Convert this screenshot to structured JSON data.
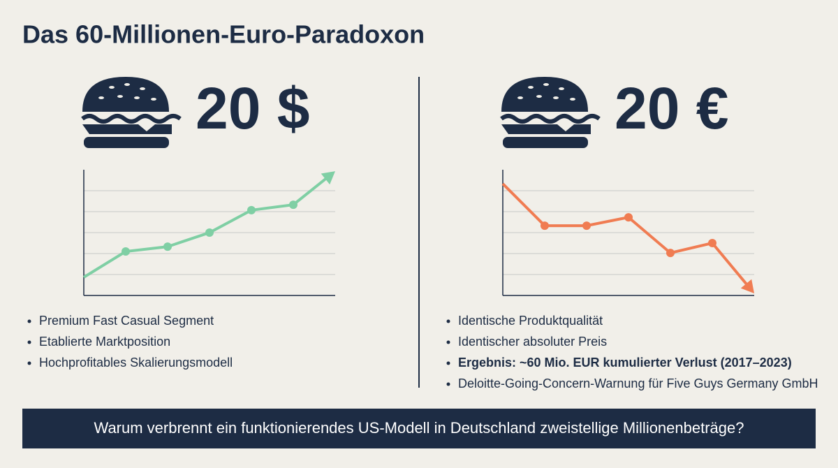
{
  "title": "Das 60-Millionen-Euro-Paradoxon",
  "panels": [
    {
      "price": "20 $",
      "bullets": [
        "Premium Fast Casual Segment",
        "Etablierte Marktposition",
        "Hochprofitables Skalierungsmodell"
      ]
    },
    {
      "price": "20 €",
      "bullets": [
        "Identische Produktqualität",
        "Identischer absoluter Preis",
        "Ergebnis: ~60 Mio. EUR kumulierter Verlust (2017–2023)",
        "Deloitte-Going-Concern-Warnung für Five Guys Germany GmbH"
      ],
      "bold": [
        2
      ]
    }
  ],
  "chart_data": [
    {
      "type": "line",
      "x": [
        0,
        1,
        2,
        3,
        4,
        5,
        6
      ],
      "values": [
        0.87,
        2.1,
        2.33,
        3,
        4.07,
        4.33,
        5.93
      ],
      "color": "#7fcfa4",
      "xlim": [
        0,
        6
      ],
      "ylim": [
        0,
        6
      ],
      "yticks": [
        1,
        2,
        3,
        4,
        5
      ],
      "grid": true
    },
    {
      "type": "line",
      "x": [
        0,
        1,
        2,
        3,
        4,
        5,
        6
      ],
      "values": [
        5.33,
        3.33,
        3.33,
        3.73,
        2.03,
        2.5,
        0.1
      ],
      "color": "#f07c52",
      "xlim": [
        0,
        6
      ],
      "ylim": [
        0,
        6
      ],
      "yticks": [
        1,
        2,
        3,
        4,
        5
      ],
      "grid": true
    }
  ],
  "banner": "Warum verbrennt ein funktionierendes US-Modell in Deutschland zweistellige Millionenbeträge?"
}
